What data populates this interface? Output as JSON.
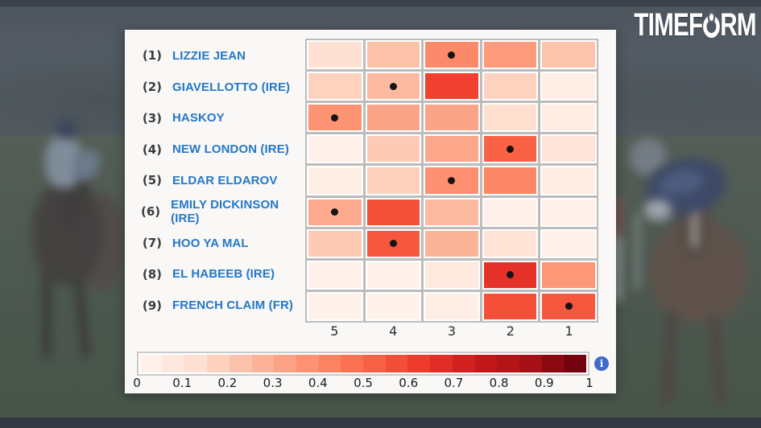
{
  "logo": {
    "name": "TIMEFORM",
    "left": "TIMEF",
    "right": "RM"
  },
  "colors": {
    "horse_name_blue": "#2478c8",
    "rank_text": "#3c3c3c",
    "grid_line": "#bcbcbc",
    "panel_background": "#faf8f6",
    "dot_color": "#141414",
    "info_icon_blue": "#3d6cc8",
    "logo_white": "#ffffff"
  },
  "icons": {
    "info_icon_glyph": "i",
    "dot_marker": "filled-circle"
  },
  "chart_data": {
    "type": "heatmap",
    "title": "",
    "xlabel": "",
    "ylabel": "",
    "columns": [
      "5",
      "4",
      "3",
      "2",
      "1"
    ],
    "rows": [
      {
        "rank": "(1)",
        "name": "LIZZIE JEAN",
        "values": [
          0.12,
          0.23,
          0.4,
          0.35,
          0.22
        ],
        "dot_col": 2
      },
      {
        "rank": "(2)",
        "name": "GIAVELLOTTO (IRE)",
        "values": [
          0.17,
          0.25,
          0.61,
          0.17,
          0.04
        ],
        "dot_col": 1
      },
      {
        "rank": "(3)",
        "name": "HASKOY",
        "values": [
          0.37,
          0.32,
          0.32,
          0.13,
          0.05
        ],
        "dot_col": 0
      },
      {
        "rank": "(4)",
        "name": "NEW LONDON (IRE)",
        "values": [
          0.03,
          0.2,
          0.31,
          0.52,
          0.1
        ],
        "dot_col": 3
      },
      {
        "rank": "(5)",
        "name": "ELDAR ELDAROV",
        "values": [
          0.04,
          0.18,
          0.38,
          0.41,
          0.05
        ],
        "dot_col": 2
      },
      {
        "rank": "(6)",
        "name": "EMILY DICKINSON (IRE)",
        "values": [
          0.3,
          0.57,
          0.25,
          0.03,
          0.03
        ],
        "dot_col": 0
      },
      {
        "rank": "(7)",
        "name": "HOO YA MAL",
        "values": [
          0.2,
          0.55,
          0.27,
          0.11,
          0.02
        ],
        "dot_col": 1
      },
      {
        "rank": "(8)",
        "name": "EL HABEEB (IRE)",
        "values": [
          0.03,
          0.02,
          0.07,
          0.66,
          0.36
        ],
        "dot_col": 3
      },
      {
        "rank": "(9)",
        "name": "FRENCH CLAIM (FR)",
        "values": [
          0.02,
          0.02,
          0.04,
          0.57,
          0.55
        ],
        "dot_col": 4
      }
    ],
    "colorbar": {
      "min": 0,
      "max": 1,
      "segments": 20,
      "ticks": [
        "0",
        "0.1",
        "0.2",
        "0.3",
        "0.4",
        "0.5",
        "0.6",
        "0.7",
        "0.8",
        "0.9",
        "1"
      ]
    },
    "color_scale": {
      "name": "Reds",
      "stops": [
        {
          "t": 0.0,
          "color": "#fff5f0"
        },
        {
          "t": 0.125,
          "color": "#fee0d2"
        },
        {
          "t": 0.25,
          "color": "#fcbba1"
        },
        {
          "t": 0.375,
          "color": "#fc9272"
        },
        {
          "t": 0.5,
          "color": "#fb6a4a"
        },
        {
          "t": 0.625,
          "color": "#ef3b2c"
        },
        {
          "t": 0.75,
          "color": "#cb181d"
        },
        {
          "t": 0.875,
          "color": "#a50f15"
        },
        {
          "t": 1.0,
          "color": "#67000d"
        }
      ]
    },
    "legend_position": "bottom",
    "grid": true
  }
}
